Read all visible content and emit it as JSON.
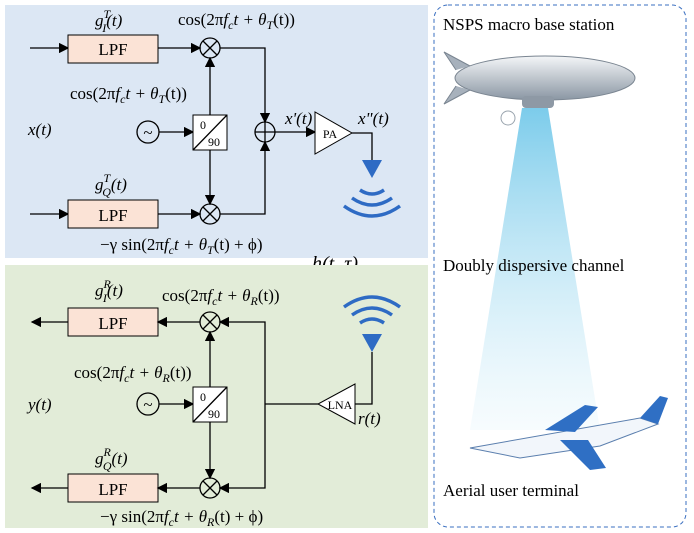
{
  "tx": {
    "g_i": [
      "g",
      "T",
      "I",
      "(t)"
    ],
    "g_q": [
      "g",
      "T",
      "Q",
      "(t)"
    ],
    "lpf_i": "LPF",
    "lpf_q": "LPF",
    "cos_top": [
      "cos(2π",
      "f",
      "c",
      "t + θ",
      "T",
      "(t))"
    ],
    "cos_mid": [
      "cos(2π",
      "f",
      "c",
      "t + θ",
      "T",
      "(t))"
    ],
    "sin_bottom": [
      "−γ sin(2π",
      "f",
      "c",
      "t + θ",
      "T",
      "(t) + ϕ)"
    ],
    "input": "x(t)",
    "shift": [
      "0",
      "90"
    ],
    "osc": "~",
    "adder_out": "x'(t)",
    "amp": "PA",
    "amp_out": "x\"(t)"
  },
  "rx": {
    "g_i": [
      "g",
      "R",
      "I",
      "(t)"
    ],
    "g_q": [
      "g",
      "R",
      "Q",
      "(t)"
    ],
    "lpf_i": "LPF",
    "lpf_q": "LPF",
    "cos_top": [
      "cos(2π",
      "f",
      "c",
      "t + θ",
      "R",
      "(t))"
    ],
    "cos_mid": [
      "cos(2π",
      "f",
      "c",
      "t + θ",
      "R",
      "(t))"
    ],
    "sin_bottom": [
      "−γ sin(2π",
      "f",
      "c",
      "t + θ",
      "R",
      "(t) + ϕ)"
    ],
    "output": "y(t)",
    "shift": [
      "0",
      "90"
    ],
    "osc": "~",
    "amp": "LNA",
    "amp_in": "r(t)"
  },
  "channel": "h(t, τ)",
  "scene": {
    "base_station": "NSPS macro base station",
    "channel": "Doubly dispersive channel",
    "terminal": "Aerial user terminal"
  }
}
